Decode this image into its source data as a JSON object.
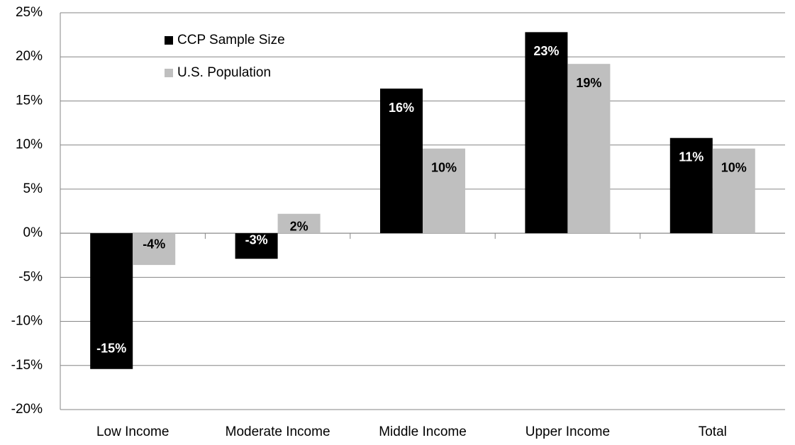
{
  "chart_data": {
    "type": "bar",
    "categories": [
      "Low Income",
      "Moderate Income",
      "Middle Income",
      "Upper Income",
      "Total"
    ],
    "series": [
      {
        "name": "CCP Sample Size",
        "color": "#000000",
        "values": [
          -15.4,
          -2.9,
          16.4,
          22.8,
          10.8
        ],
        "value_labels": [
          "-15%",
          "-3%",
          "16%",
          "23%",
          "11%"
        ]
      },
      {
        "name": "U.S. Population",
        "color": "#bfbfbf",
        "values": [
          -3.6,
          2.2,
          9.6,
          19.2,
          9.6
        ],
        "value_labels": [
          "-4%",
          "2%",
          "10%",
          "19%",
          "10%"
        ]
      }
    ],
    "ylim": [
      -20,
      25
    ],
    "yticks": [
      {
        "value": -20,
        "label": "-20%"
      },
      {
        "value": -15,
        "label": "-15%"
      },
      {
        "value": -10,
        "label": "-10%"
      },
      {
        "value": -5,
        "label": "-5%"
      },
      {
        "value": 0,
        "label": "0%"
      },
      {
        "value": 5,
        "label": "5%"
      },
      {
        "value": 10,
        "label": "10%"
      },
      {
        "value": 15,
        "label": "15%"
      },
      {
        "value": 20,
        "label": "20%"
      },
      {
        "value": 25,
        "label": "25%"
      }
    ],
    "grid": true,
    "legend": "upper left"
  }
}
